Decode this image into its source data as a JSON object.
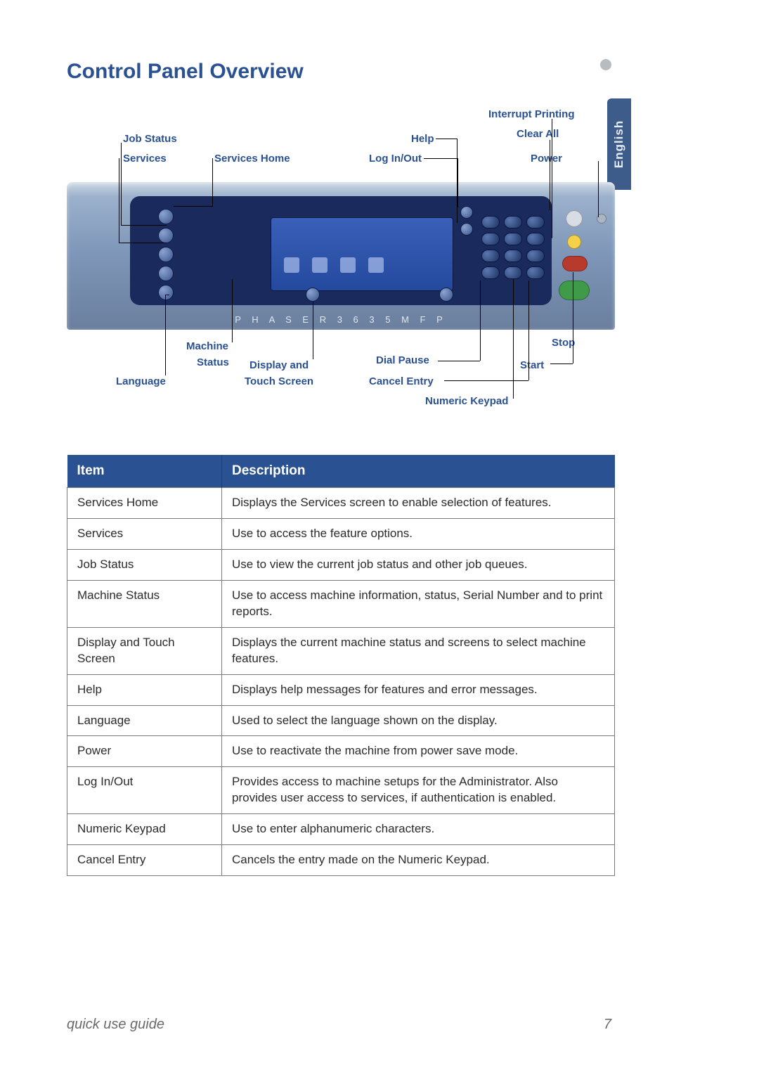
{
  "title": {
    "text": "Control Panel Overview",
    "color": "#2a5191"
  },
  "side_tab": "English",
  "labels": {
    "color": "#2a5191",
    "top": {
      "job_status": "Job Status",
      "services": "Services",
      "services_home": "Services Home",
      "log_in_out": "Log In/Out",
      "help": "Help",
      "interrupt": "Interrupt Printing",
      "clear_all": "Clear All",
      "power": "Power"
    },
    "bottom": {
      "machine1": "Machine",
      "machine2": "Status",
      "language": "Language",
      "display1": "Display and",
      "display2": "Touch Screen",
      "dial_pause": "Dial Pause",
      "cancel_entry": "Cancel Entry",
      "numeric_keypad": "Numeric Keypad",
      "stop": "Stop",
      "start": "Start"
    }
  },
  "device_text": "P H A S E R   3 6 3 5 M F P",
  "table": {
    "header_bg": "#2a5191",
    "columns": [
      "Item",
      "Description"
    ],
    "rows": [
      [
        "Services Home",
        "Displays the Services screen to enable selection of features."
      ],
      [
        "Services",
        "Use to access the feature options."
      ],
      [
        "Job Status",
        "Use to view the current job status and other job queues."
      ],
      [
        "Machine Status",
        "Use to access machine information, status, Serial Number and to print reports."
      ],
      [
        "Display and Touch Screen",
        "Displays the current machine status and screens to select machine features."
      ],
      [
        "Help",
        "Displays help messages for features and error messages."
      ],
      [
        "Language",
        "Used to select the language shown on the display."
      ],
      [
        "Power",
        "Use to reactivate the machine from power save mode."
      ],
      [
        "Log In/Out",
        "Provides access to machine setups for the Administrator. Also provides user access to services, if authentication is enabled."
      ],
      [
        "Numeric Keypad",
        "Use to enter alphanumeric characters."
      ],
      [
        "Cancel Entry",
        "Cancels the entry made on the Numeric Keypad."
      ]
    ]
  },
  "footer": "quick use guide",
  "page_number": "7"
}
